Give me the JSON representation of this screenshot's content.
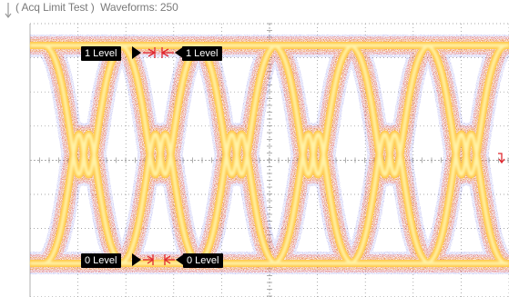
{
  "status": {
    "acq_mode": "( Acq Limit Test )",
    "waveforms_label": "Waveforms: 250",
    "full": "( Acq Limit Test )  Waveforms: 250"
  },
  "markers": {
    "one_level_left": "1 Level",
    "one_level_right": "1 Level",
    "zero_level_left": "0 Level",
    "zero_level_right": "0 Level"
  },
  "icons": {
    "trigger_level_marker": "trigger-level-arrow-icon",
    "ground_marker": "ground-arrow-icon"
  },
  "colors": {
    "background": "#ffffff",
    "grid": "#8a8a8a",
    "trace_core": "#fff3a8",
    "trace_mid": "#ff9a1a",
    "trace_outer": "#ff3a10",
    "trace_edge": "#3a3ad8",
    "marker": "#e0282f"
  }
}
